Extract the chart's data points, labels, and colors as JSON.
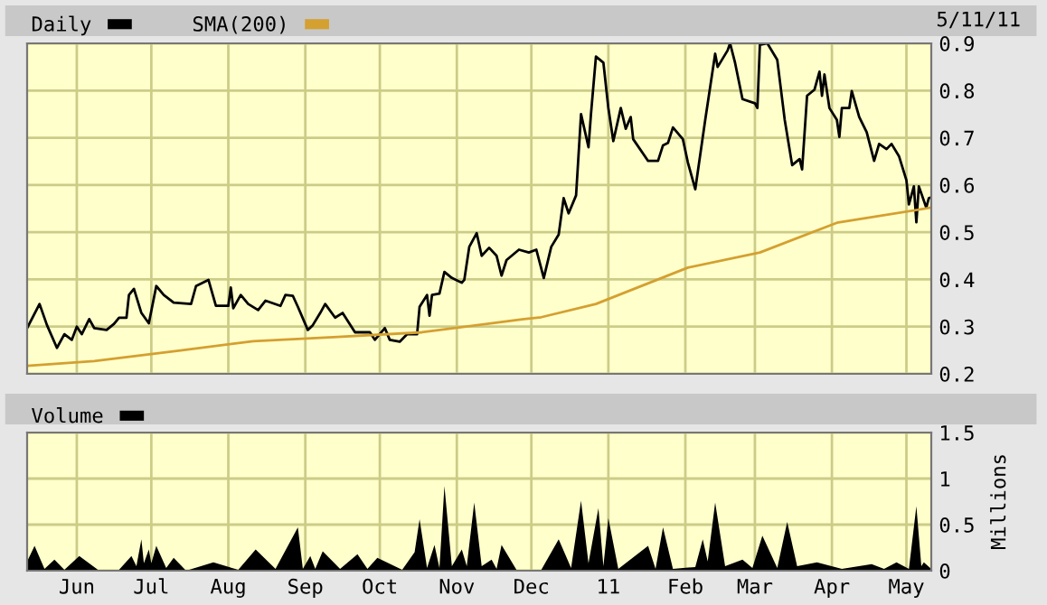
{
  "chart_data": [
    {
      "type": "line",
      "annotations": [
        "5/11/11"
      ],
      "legend": "top left",
      "grid": true,
      "tick_labels": "y",
      "xlim": [
        "2010-05-12",
        "2011-05-11"
      ],
      "xticks": [
        {
          "value": "2010-06-01",
          "label": null
        },
        {
          "value": "2010-07-01",
          "label": null
        },
        {
          "value": "2010-08-01",
          "label": null
        },
        {
          "value": "2010-09-01",
          "label": null
        },
        {
          "value": "2010-10-01",
          "label": null
        },
        {
          "value": "2010-11-01",
          "label": null
        },
        {
          "value": "2010-12-01",
          "label": null
        },
        {
          "value": "2011-01-01",
          "label": null
        },
        {
          "value": "2011-02-01",
          "label": null
        },
        {
          "value": "2011-03-01",
          "label": null
        },
        {
          "value": "2011-04-01",
          "label": null
        },
        {
          "value": "2011-05-01",
          "label": null
        }
      ],
      "ylim": [
        0.2,
        0.9
      ],
      "yticks": [
        0.2,
        0.3,
        0.4,
        0.5,
        0.6,
        0.7,
        0.8,
        0.9
      ],
      "series": [
        {
          "name": "Daily",
          "color": "#000000",
          "x": [
            "2010-05-12",
            "2010-05-17",
            "2010-05-20",
            "2010-05-24",
            "2010-05-27",
            "2010-05-30",
            "2010-06-01",
            "2010-06-03",
            "2010-06-06",
            "2010-06-08",
            "2010-06-13",
            "2010-06-16",
            "2010-06-18",
            "2010-06-21",
            "2010-06-22",
            "2010-06-24",
            "2010-06-27",
            "2010-06-30",
            "2010-07-03",
            "2010-07-06",
            "2010-07-10",
            "2010-07-17",
            "2010-07-19",
            "2010-07-24",
            "2010-07-27",
            "2010-08-01",
            "2010-08-02",
            "2010-08-03",
            "2010-08-06",
            "2010-08-09",
            "2010-08-13",
            "2010-08-16",
            "2010-08-22",
            "2010-08-24",
            "2010-08-27",
            "2010-08-29",
            "2010-09-02",
            "2010-09-04",
            "2010-09-07",
            "2010-09-09",
            "2010-09-13",
            "2010-09-16",
            "2010-09-21",
            "2010-09-27",
            "2010-09-29",
            "2010-10-03",
            "2010-10-05",
            "2010-10-09",
            "2010-10-12",
            "2010-10-16",
            "2010-10-17",
            "2010-10-20",
            "2010-10-21",
            "2010-10-22",
            "2010-10-25",
            "2010-10-27",
            "2010-10-30",
            "2010-11-03",
            "2010-11-04",
            "2010-11-06",
            "2010-11-09",
            "2010-11-11",
            "2010-11-14",
            "2010-11-17",
            "2010-11-19",
            "2010-11-21",
            "2010-11-26",
            "2010-11-30",
            "2010-12-03",
            "2010-12-06",
            "2010-12-09",
            "2010-12-12",
            "2010-12-14",
            "2010-12-16",
            "2010-12-19",
            "2010-12-21",
            "2010-12-24",
            "2010-12-25",
            "2010-12-27",
            "2010-12-30",
            "2011-01-01",
            "2011-01-03",
            "2011-01-06",
            "2011-01-08",
            "2011-01-10",
            "2011-01-11",
            "2011-01-17",
            "2011-01-21",
            "2011-01-23",
            "2011-01-25",
            "2011-01-27",
            "2011-01-31",
            "2011-02-02",
            "2011-02-05",
            "2011-02-09",
            "2011-02-13",
            "2011-02-14",
            "2011-02-18",
            "2011-02-19",
            "2011-02-21",
            "2011-02-24",
            "2011-03-01",
            "2011-03-02",
            "2011-03-03",
            "2011-03-06",
            "2011-03-10",
            "2011-03-13",
            "2011-03-16",
            "2011-03-19",
            "2011-03-20",
            "2011-03-22",
            "2011-03-25",
            "2011-03-27",
            "2011-03-28",
            "2011-03-29",
            "2011-03-31",
            "2011-04-03",
            "2011-04-04",
            "2011-04-05",
            "2011-04-08",
            "2011-04-09",
            "2011-04-12",
            "2011-04-15",
            "2011-04-18",
            "2011-04-20",
            "2011-04-23",
            "2011-04-25",
            "2011-04-28",
            "2011-05-01",
            "2011-05-02",
            "2011-05-04",
            "2011-05-05",
            "2011-05-06",
            "2011-05-09",
            "2011-05-10",
            "2011-05-11"
          ],
          "values": [
            0.297,
            0.348,
            0.303,
            0.255,
            0.284,
            0.272,
            0.3,
            0.284,
            0.316,
            0.297,
            0.293,
            0.306,
            0.319,
            0.319,
            0.367,
            0.38,
            0.329,
            0.307,
            0.386,
            0.367,
            0.351,
            0.348,
            0.386,
            0.399,
            0.344,
            0.344,
            0.383,
            0.339,
            0.367,
            0.348,
            0.335,
            0.355,
            0.344,
            0.367,
            0.365,
            0.342,
            0.293,
            0.303,
            0.329,
            0.348,
            0.319,
            0.329,
            0.288,
            0.288,
            0.272,
            0.297,
            0.272,
            0.268,
            0.284,
            0.284,
            0.342,
            0.367,
            0.323,
            0.367,
            0.37,
            0.416,
            0.403,
            0.393,
            0.399,
            0.469,
            0.498,
            0.45,
            0.467,
            0.45,
            0.408,
            0.441,
            0.463,
            0.457,
            0.463,
            0.403,
            0.469,
            0.495,
            0.572,
            0.54,
            0.578,
            0.75,
            0.68,
            0.75,
            0.872,
            0.859,
            0.763,
            0.693,
            0.763,
            0.719,
            0.744,
            0.697,
            0.651,
            0.651,
            0.684,
            0.689,
            0.722,
            0.697,
            0.648,
            0.591,
            0.738,
            0.878,
            0.85,
            0.885,
            0.9,
            0.859,
            0.782,
            0.773,
            0.763,
            0.897,
            0.9,
            0.865,
            0.738,
            0.642,
            0.655,
            0.633,
            0.789,
            0.802,
            0.84,
            0.789,
            0.834,
            0.763,
            0.738,
            0.702,
            0.763,
            0.763,
            0.799,
            0.744,
            0.712,
            0.651,
            0.687,
            0.676,
            0.687,
            0.661,
            0.61,
            0.559,
            0.597,
            0.521,
            0.597,
            0.552,
            0.572,
            0.574
          ]
        },
        {
          "name": "SMA(200)",
          "color": "#d4a030",
          "x": [
            "2010-05-12",
            "2010-06-08",
            "2010-07-12",
            "2010-08-11",
            "2010-09-14",
            "2010-10-18",
            "2010-11-28",
            "2010-12-05",
            "2010-12-27",
            "2011-02-02",
            "2011-03-03",
            "2011-04-03",
            "2011-05-11"
          ],
          "values": [
            0.217,
            0.227,
            0.249,
            0.269,
            0.278,
            0.288,
            0.316,
            0.32,
            0.348,
            0.425,
            0.457,
            0.52,
            0.552
          ]
        }
      ]
    },
    {
      "type": "area",
      "ylabel": "Millions",
      "legend": "top left",
      "grid": true,
      "xlim": [
        "2010-05-12",
        "2011-05-11"
      ],
      "xticks": [
        {
          "value": "2010-06-01",
          "label": "Jun"
        },
        {
          "value": "2010-07-01",
          "label": "Jul"
        },
        {
          "value": "2010-08-01",
          "label": "Aug"
        },
        {
          "value": "2010-09-01",
          "label": "Sep"
        },
        {
          "value": "2010-10-01",
          "label": "Oct"
        },
        {
          "value": "2010-11-01",
          "label": "Nov"
        },
        {
          "value": "2010-12-01",
          "label": "Dec"
        },
        {
          "value": "2011-01-01",
          "label": "11"
        },
        {
          "value": "2011-02-01",
          "label": "Feb"
        },
        {
          "value": "2011-03-01",
          "label": "Mar"
        },
        {
          "value": "2011-04-01",
          "label": "Apr"
        },
        {
          "value": "2011-05-01",
          "label": "May"
        }
      ],
      "ylim": [
        0,
        1.5
      ],
      "yticks": [
        0,
        0.5,
        1,
        1.5
      ],
      "series": [
        {
          "name": "Volume",
          "color": "#000000",
          "x": [
            "2010-05-12",
            "2010-05-15",
            "2010-05-19",
            "2010-05-23",
            "2010-05-27",
            "2010-06-02",
            "2010-06-10",
            "2010-06-18",
            "2010-06-23",
            "2010-06-25",
            "2010-06-27",
            "2010-06-28",
            "2010-06-30",
            "2010-07-01",
            "2010-07-03",
            "2010-07-07",
            "2010-07-10",
            "2010-07-15",
            "2010-07-26",
            "2010-08-05",
            "2010-08-12",
            "2010-08-20",
            "2010-08-29",
            "2010-08-31",
            "2010-09-03",
            "2010-09-05",
            "2010-09-08",
            "2010-09-15",
            "2010-09-22",
            "2010-09-26",
            "2010-09-30",
            "2010-10-10",
            "2010-10-15",
            "2010-10-17",
            "2010-10-20",
            "2010-10-23",
            "2010-10-25",
            "2010-10-27",
            "2010-10-30",
            "2010-11-03",
            "2010-11-05",
            "2010-11-08",
            "2010-11-11",
            "2010-11-15",
            "2010-11-17",
            "2010-11-19",
            "2010-11-25",
            "2010-12-05",
            "2010-12-12",
            "2010-12-17",
            "2010-12-21",
            "2010-12-24",
            "2010-12-28",
            "2010-12-30",
            "2011-01-01",
            "2011-01-05",
            "2011-01-17",
            "2011-01-20",
            "2011-01-23",
            "2011-01-27",
            "2011-02-05",
            "2011-02-08",
            "2011-02-10",
            "2011-02-13",
            "2011-02-17",
            "2011-02-24",
            "2011-02-28",
            "2011-03-04",
            "2011-03-10",
            "2011-03-14",
            "2011-03-18",
            "2011-03-26",
            "2011-04-05",
            "2011-04-17",
            "2011-04-22",
            "2011-04-27",
            "2011-05-02",
            "2011-05-05",
            "2011-05-07",
            "2011-05-08",
            "2011-05-11"
          ],
          "values": [
            0.1,
            0.27,
            0.02,
            0.12,
            0.01,
            0.16,
            0.0,
            0.01,
            0.16,
            0.05,
            0.34,
            0.08,
            0.23,
            0.08,
            0.27,
            0.03,
            0.14,
            0.0,
            0.09,
            0.01,
            0.23,
            0.02,
            0.47,
            0.02,
            0.16,
            0.02,
            0.21,
            0.02,
            0.18,
            0.02,
            0.14,
            0.01,
            0.2,
            0.56,
            0.03,
            0.28,
            0.03,
            0.92,
            0.05,
            0.23,
            0.05,
            0.74,
            0.05,
            0.12,
            0.02,
            0.28,
            0.01,
            0.01,
            0.34,
            0.03,
            0.76,
            0.08,
            0.68,
            0.05,
            0.57,
            0.02,
            0.27,
            0.02,
            0.47,
            0.02,
            0.04,
            0.34,
            0.1,
            0.74,
            0.05,
            0.12,
            0.03,
            0.38,
            0.03,
            0.53,
            0.05,
            0.09,
            0.02,
            0.07,
            0.02,
            0.09,
            0.02,
            0.7,
            0.05,
            0.09,
            0.02
          ]
        }
      ]
    }
  ]
}
